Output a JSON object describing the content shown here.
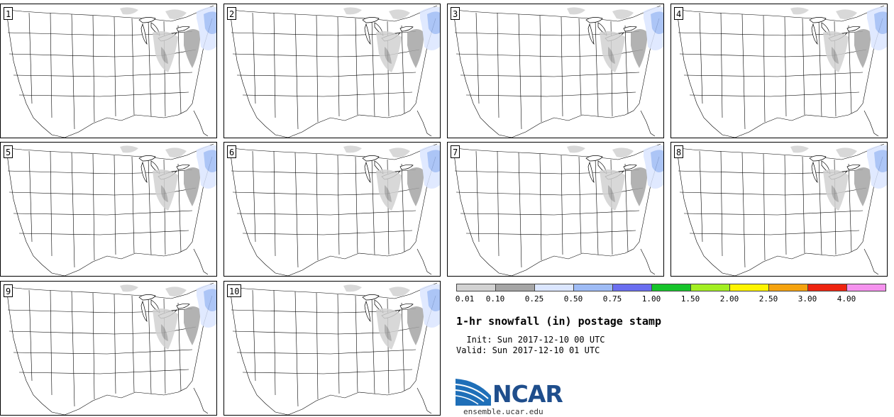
{
  "panels": [
    {
      "label": "1"
    },
    {
      "label": "2"
    },
    {
      "label": "3"
    },
    {
      "label": "4"
    },
    {
      "label": "5"
    },
    {
      "label": "6"
    },
    {
      "label": "7"
    },
    {
      "label": "8"
    },
    {
      "label": "9"
    },
    {
      "label": "10"
    }
  ],
  "legend": {
    "colors": [
      "#d2d2d2",
      "#a5a5a5",
      "#dbe6ff",
      "#9ebbf5",
      "#6a6ef0",
      "#16c42b",
      "#a3ef22",
      "#fff400",
      "#f5a30f",
      "#ee2410",
      "#f592ee"
    ],
    "ticks": [
      "0.01",
      "0.10",
      "0.25",
      "0.50",
      "0.75",
      "1.00",
      "1.50",
      "2.00",
      "2.50",
      "3.00",
      "4.00"
    ]
  },
  "title": "1-hr snowfall (in) postage stamp",
  "init": "  Init: Sun 2017-12-10 00 UTC",
  "valid": "Valid: Sun 2017-12-10 01 UTC",
  "logo": {
    "text": "NCAR",
    "site": "ensemble.ucar.edu",
    "color": "#1f4e8c"
  }
}
